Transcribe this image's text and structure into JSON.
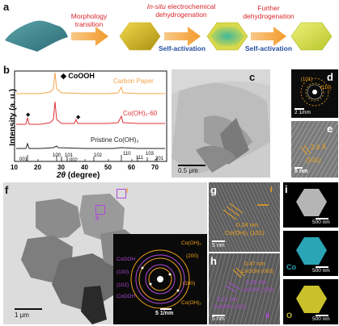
{
  "panels": {
    "a": {
      "label": "a",
      "steps": [
        {
          "title": "Morphology transition",
          "sub": ""
        },
        {
          "title_em": "In-situ",
          "title": " electrochemical dehydrogenation",
          "sub": "Self-activation"
        },
        {
          "title": "Further dehydrogenation",
          "sub": "Self-activation"
        }
      ]
    },
    "b": {
      "label": "b",
      "legend_marker": "◆ CoOOH",
      "traces": [
        "Carbon Paper",
        "Co(OH)₂-60",
        "Pristine Co(OH)₂"
      ],
      "hkl": [
        "001",
        "100",
        "101",
        "102",
        "110",
        "111",
        "103",
        "201"
      ],
      "hkl_mid": "002",
      "ylabel": "Intensity (a. u.)",
      "xlabel_theta": "2θ",
      "xlabel_rest": " (degree)",
      "xticks": [
        "10",
        "20",
        "30",
        "40",
        "50",
        "60",
        "70"
      ]
    },
    "c": {
      "label": "c",
      "scale": "0.5 μm"
    },
    "d": {
      "label": "d",
      "scale": "2 1/nm",
      "rings": [
        "(101)",
        "(110)"
      ]
    },
    "e": {
      "label": "e",
      "spacing": "2.4 Å",
      "plane": "(101)",
      "scale": "5 nm"
    },
    "f": {
      "label": "f",
      "scale": "1 μm",
      "marker_I": "I",
      "marker_II": "II",
      "inset_scale": "5 1/nm",
      "inset_labels_left": [
        "CoOOH",
        "(100)",
        "(102)",
        "CoOOH"
      ],
      "inset_labels_right": [
        "Co(OH)₂",
        "(200)",
        "(100)",
        "Co(OH)₂"
      ]
    },
    "g": {
      "label": "g",
      "marker": "I",
      "d_spacing": "0.24 nm",
      "phase": "Co(OH)₂ (101)",
      "scale": "5 nm"
    },
    "h": {
      "label": "h",
      "marker": "II",
      "annotations": [
        "0.47 nm",
        "CoOOH (003)",
        "0.25 nm",
        "CoOOH (100)",
        "0.21 nm",
        "CoOOH (102)"
      ],
      "scale": "5 nm"
    },
    "i": {
      "label": "i",
      "scales": [
        "500 nm",
        "500 nm",
        "500 nm"
      ],
      "elements": [
        "Co",
        "O"
      ]
    }
  },
  "colors": {
    "red": "#d8262b",
    "blue": "#234f9f",
    "orange": "#f0a21a",
    "purple": "#b04ad6",
    "trace_orange": "#f2a64a",
    "trace_red": "#e03236",
    "trace_black": "#222222"
  }
}
